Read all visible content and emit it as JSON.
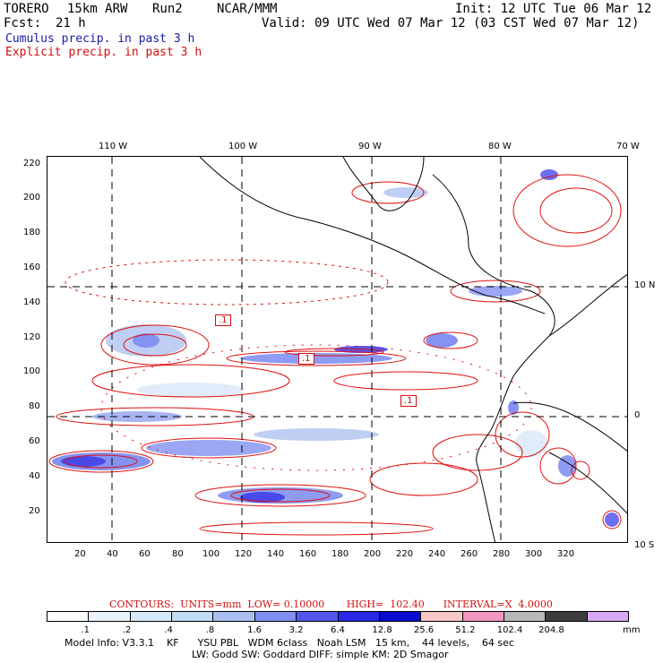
{
  "header": {
    "model": "TORERO",
    "resolution": "15km ARW",
    "run": "Run2",
    "org": "NCAR/MMM",
    "init": "Init: 12 UTC Tue 06 Mar 12",
    "fcst_label": "Fcst:",
    "fcst_value": "21 h",
    "valid": "Valid: 09 UTC Wed 07 Mar 12 (03 CST Wed 07 Mar 12)"
  },
  "legend": {
    "cumulus": "Cumulus precip. in past 3 h",
    "explicit": "Explicit precip. in past 3 h"
  },
  "axes": {
    "top_lon": [
      "110 W",
      "100 W",
      "90 W",
      "80 W",
      "70 W"
    ],
    "right_lat": [
      "10 N",
      "0",
      "10 S"
    ],
    "left_y": [
      "220",
      "200",
      "180",
      "160",
      "140",
      "120",
      "100",
      "80",
      "60",
      "40",
      "20"
    ],
    "bottom_x": [
      "20",
      "40",
      "60",
      "80",
      "100",
      "120",
      "140",
      "160",
      "180",
      "200",
      "220",
      "240",
      "260",
      "280",
      "300",
      "320"
    ]
  },
  "contour_labels": [
    ".1",
    ".1",
    ".1"
  ],
  "contours_info": "CONTOURS:  UNITS=mm  LOW= 0.10000       HIGH=  102.40      INTERVAL=X  4.0000",
  "colorbar": {
    "colors": [
      "#ffffff",
      "#eaf2fb",
      "#d6e9f8",
      "#c0dcf3",
      "#a9bff0",
      "#7f8ff0",
      "#5555ee",
      "#2828e6",
      "#0b0bd0",
      "#f7c7c7",
      "#f298c0",
      "#b8b8b8",
      "#3c3c3c",
      "#d9a8f5"
    ],
    "labels": [
      ".1",
      ".2",
      ".4",
      ".8",
      "1.6",
      "3.2",
      "6.4",
      "12.8",
      "25.6",
      "51.2",
      "102.4",
      "204.8"
    ],
    "units": "mm"
  },
  "model_info_1": "Model Info: V3.3.1    KF      YSU PBL   WDM 6class   Noah LSM   15 km,    44 levels,    64 sec",
  "model_info_2": "LW: Godd SW: Goddard DIFF: simple KM: 2D Smagor"
}
